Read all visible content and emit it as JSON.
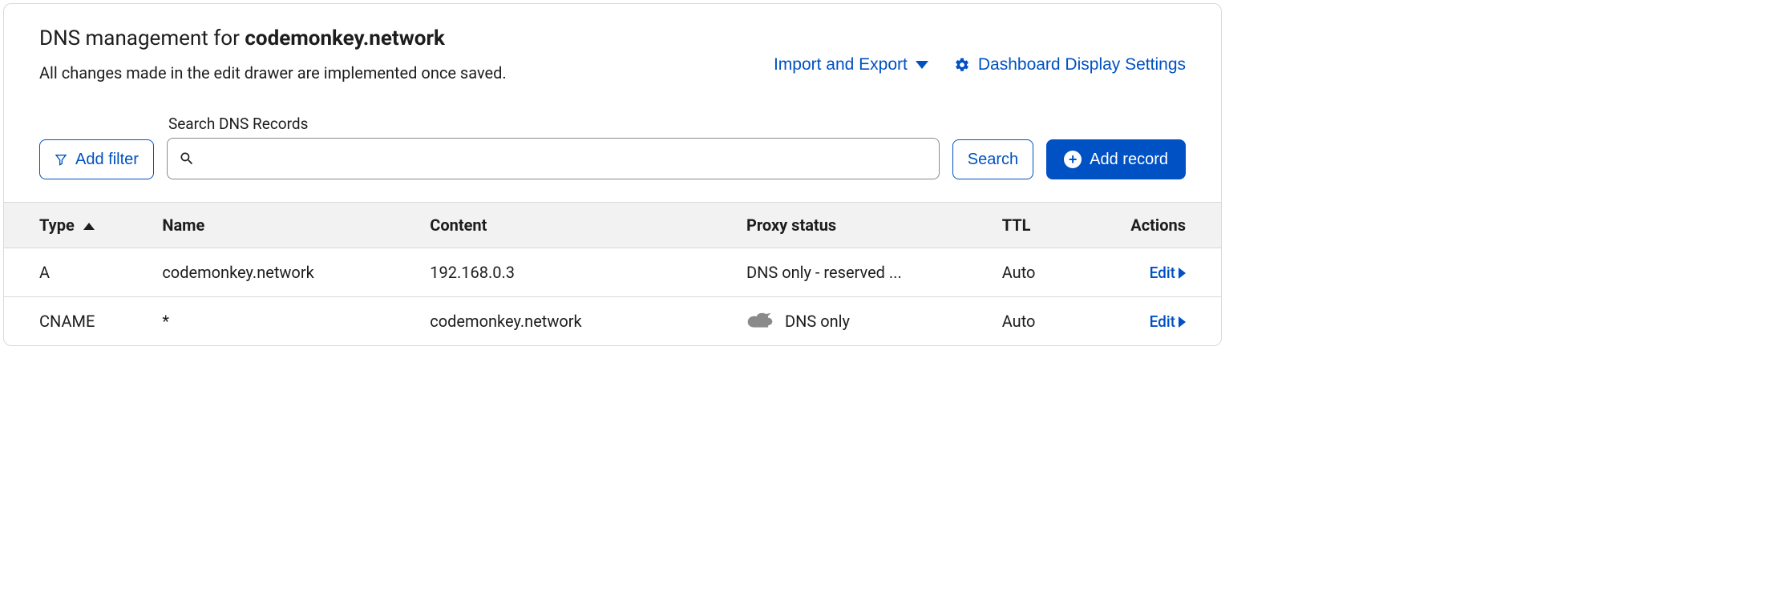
{
  "colors": {
    "accent": "#0051c3",
    "text": "#1d1d1d",
    "border": "#d9d9d9",
    "header_bg": "#f2f2f2",
    "muted": "#8a8a8a",
    "white": "#ffffff"
  },
  "header": {
    "title_prefix": "DNS management for ",
    "title_domain": "codemonkey.network",
    "subtitle": "All changes made in the edit drawer are implemented once saved.",
    "import_export_label": "Import and Export",
    "display_settings_label": "Dashboard Display Settings"
  },
  "controls": {
    "add_filter_label": "Add filter",
    "search_label": "Search DNS Records",
    "search_value": "",
    "search_placeholder": "",
    "search_button_label": "Search",
    "add_record_label": "Add record"
  },
  "table": {
    "columns": {
      "type": "Type",
      "name": "Name",
      "content": "Content",
      "proxy": "Proxy status",
      "ttl": "TTL",
      "actions": "Actions"
    },
    "sort": {
      "column": "type",
      "direction": "asc"
    },
    "col_widths": [
      "13%",
      "22%",
      "26%",
      "21%",
      "9%",
      "9%"
    ],
    "edit_label": "Edit",
    "rows": [
      {
        "type": "A",
        "name": "codemonkey.network",
        "content": "192.168.0.3",
        "proxy_status": "DNS only - reserved ...",
        "proxy_icon": false,
        "ttl": "Auto"
      },
      {
        "type": "CNAME",
        "name": "*",
        "content": "codemonkey.network",
        "proxy_status": "DNS only",
        "proxy_icon": true,
        "ttl": "Auto"
      }
    ]
  }
}
